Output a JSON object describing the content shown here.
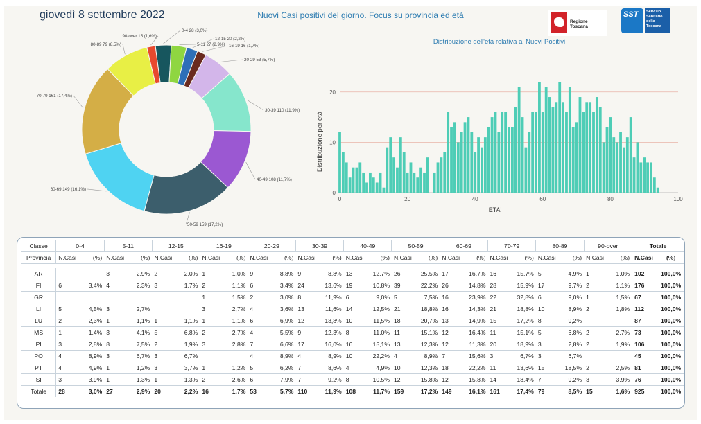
{
  "header": {
    "date": "giovedì 8 settembre 2022",
    "title": "Nuovi Casi positivi del giorno. Focus su provincia ed età",
    "logo_regione": "Regione Toscana",
    "logo_sst_short": "SST",
    "logo_sst_text": [
      "Servizio",
      "Sanitario",
      "della",
      "Toscana"
    ]
  },
  "chart_data": [
    {
      "type": "pie",
      "donut": true,
      "categories": [
        "0-4",
        "5-11",
        "12-15",
        "16-19",
        "20-29",
        "30-39",
        "40-49",
        "50-59",
        "60-69",
        "70-79",
        "80-89",
        "90-over"
      ],
      "values": [
        28,
        27,
        20,
        16,
        53,
        110,
        108,
        159,
        149,
        161,
        79,
        15
      ],
      "labels": [
        "0-4 28 (3,0%)",
        "5-11 27 (2,9%)",
        "12-15 20 (2,2%)",
        "16-19 16 (1,7%)",
        "20-29 53 (5,7%)",
        "30-39 110 (11,9%)",
        "40-49 108 (11,7%)",
        "50-59 159 (17,2%)",
        "60-69 149 (16,1%)",
        "70-79 161 (17,4%)",
        "80-89 79 (8,5%)",
        "90-over 15 (1,6%)"
      ],
      "colors": [
        "#17565e",
        "#8fd641",
        "#2e6fb8",
        "#6a2a1f",
        "#d3b6ea",
        "#86e6cc",
        "#9b58d2",
        "#3c5e6c",
        "#4fd3f2",
        "#d4ae46",
        "#e8ef45",
        "#e8492e"
      ]
    },
    {
      "type": "bar",
      "title": "Distribuzione dell'età relativa ai Nuovi Positivi",
      "xlabel": "ETA'",
      "ylabel": "Distribuzione per età",
      "xlim": [
        0,
        100
      ],
      "ylim": [
        0,
        23
      ],
      "xticks": [
        0,
        20,
        40,
        60,
        80,
        100
      ],
      "yticks": [
        0,
        10,
        20
      ],
      "color": "#4ecdb6",
      "x": [
        0,
        1,
        2,
        3,
        4,
        5,
        6,
        7,
        8,
        9,
        10,
        11,
        12,
        13,
        14,
        15,
        16,
        17,
        18,
        19,
        20,
        21,
        22,
        23,
        24,
        25,
        26,
        27,
        28,
        29,
        30,
        31,
        32,
        33,
        34,
        35,
        36,
        37,
        38,
        39,
        40,
        41,
        42,
        43,
        44,
        45,
        46,
        47,
        48,
        49,
        50,
        51,
        52,
        53,
        54,
        55,
        56,
        57,
        58,
        59,
        60,
        61,
        62,
        63,
        64,
        65,
        66,
        67,
        68,
        69,
        70,
        71,
        72,
        73,
        74,
        75,
        76,
        77,
        78,
        79,
        80,
        81,
        82,
        83,
        84,
        85,
        86,
        87,
        88,
        89,
        90,
        91,
        92,
        93,
        94,
        95,
        96,
        97,
        98,
        99,
        100
      ],
      "values": [
        12,
        8,
        6,
        3,
        5,
        5,
        6,
        4,
        2,
        4,
        3,
        2,
        4,
        1,
        9,
        11,
        7,
        5,
        11,
        8,
        4,
        6,
        4,
        3,
        5,
        4,
        7,
        0,
        4,
        6,
        7,
        8,
        16,
        13,
        14,
        10,
        12,
        14,
        15,
        12,
        8,
        11,
        9,
        11,
        13,
        15,
        16,
        12,
        16,
        16,
        13,
        13,
        17,
        21,
        15,
        9,
        12,
        16,
        16,
        22,
        16,
        21,
        19,
        17,
        18,
        22,
        18,
        16,
        21,
        13,
        14,
        19,
        16,
        18,
        18,
        16,
        19,
        17,
        10,
        13,
        15,
        11,
        10,
        12,
        9,
        11,
        15,
        7,
        10,
        6,
        7,
        6,
        6,
        3,
        1,
        0,
        0,
        0,
        0,
        0,
        0
      ]
    }
  ],
  "table": {
    "classe_label": "Classe",
    "provincia_label": "Provincia",
    "ncasi_label": "N.Casi",
    "pct_label": "(%)",
    "total_label": "Totale",
    "groups": [
      "0-4",
      "5-11",
      "12-15",
      "16-19",
      "20-29",
      "30-39",
      "40-49",
      "50-59",
      "60-69",
      "70-79",
      "80-89",
      "90-over"
    ],
    "rows": [
      {
        "prov": "AR",
        "cells": [
          [
            "",
            ""
          ],
          [
            "3",
            "2,9%"
          ],
          [
            "2",
            "2,0%"
          ],
          [
            "1",
            "1,0%"
          ],
          [
            "9",
            "8,8%"
          ],
          [
            "9",
            "8,8%"
          ],
          [
            "13",
            "12,7%"
          ],
          [
            "26",
            "25,5%"
          ],
          [
            "17",
            "16,7%"
          ],
          [
            "16",
            "15,7%"
          ],
          [
            "5",
            "4,9%"
          ],
          [
            "1",
            "1,0%"
          ]
        ],
        "tot": "102",
        "totp": "100,0%"
      },
      {
        "prov": "FI",
        "cells": [
          [
            "6",
            "3,4%"
          ],
          [
            "4",
            "2,3%"
          ],
          [
            "3",
            "1,7%"
          ],
          [
            "2",
            "1,1%"
          ],
          [
            "6",
            "3,4%"
          ],
          [
            "24",
            "13,6%"
          ],
          [
            "19",
            "10,8%"
          ],
          [
            "39",
            "22,2%"
          ],
          [
            "26",
            "14,8%"
          ],
          [
            "28",
            "15,9%"
          ],
          [
            "17",
            "9,7%"
          ],
          [
            "2",
            "1,1%"
          ]
        ],
        "tot": "176",
        "totp": "100,0%"
      },
      {
        "prov": "GR",
        "cells": [
          [
            "",
            ""
          ],
          [
            "",
            ""
          ],
          [
            "",
            ""
          ],
          [
            "1",
            "1,5%"
          ],
          [
            "2",
            "3,0%"
          ],
          [
            "8",
            "11,9%"
          ],
          [
            "6",
            "9,0%"
          ],
          [
            "5",
            "7,5%"
          ],
          [
            "16",
            "23,9%"
          ],
          [
            "22",
            "32,8%"
          ],
          [
            "6",
            "9,0%"
          ],
          [
            "1",
            "1,5%"
          ]
        ],
        "tot": "67",
        "totp": "100,0%"
      },
      {
        "prov": "LI",
        "cells": [
          [
            "5",
            "4,5%"
          ],
          [
            "3",
            "2,7%"
          ],
          [
            "",
            ""
          ],
          [
            "3",
            "2,7%"
          ],
          [
            "4",
            "3,6%"
          ],
          [
            "13",
            "11,6%"
          ],
          [
            "14",
            "12,5%"
          ],
          [
            "21",
            "18,8%"
          ],
          [
            "16",
            "14,3%"
          ],
          [
            "21",
            "18,8%"
          ],
          [
            "10",
            "8,9%"
          ],
          [
            "2",
            "1,8%"
          ]
        ],
        "tot": "112",
        "totp": "100,0%"
      },
      {
        "prov": "LU",
        "cells": [
          [
            "2",
            "2,3%"
          ],
          [
            "1",
            "1,1%"
          ],
          [
            "1",
            "1,1%"
          ],
          [
            "1",
            "1,1%"
          ],
          [
            "6",
            "6,9%"
          ],
          [
            "12",
            "13,8%"
          ],
          [
            "10",
            "11,5%"
          ],
          [
            "18",
            "20,7%"
          ],
          [
            "13",
            "14,9%"
          ],
          [
            "15",
            "17,2%"
          ],
          [
            "8",
            "9,2%"
          ],
          [
            "",
            ""
          ]
        ],
        "tot": "87",
        "totp": "100,0%"
      },
      {
        "prov": "MS",
        "cells": [
          [
            "1",
            "1,4%"
          ],
          [
            "3",
            "4,1%"
          ],
          [
            "5",
            "6,8%"
          ],
          [
            "2",
            "2,7%"
          ],
          [
            "4",
            "5,5%"
          ],
          [
            "9",
            "12,3%"
          ],
          [
            "8",
            "11,0%"
          ],
          [
            "11",
            "15,1%"
          ],
          [
            "12",
            "16,4%"
          ],
          [
            "11",
            "15,1%"
          ],
          [
            "5",
            "6,8%"
          ],
          [
            "2",
            "2,7%"
          ]
        ],
        "tot": "73",
        "totp": "100,0%"
      },
      {
        "prov": "PI",
        "cells": [
          [
            "3",
            "2,8%"
          ],
          [
            "8",
            "7,5%"
          ],
          [
            "2",
            "1,9%"
          ],
          [
            "3",
            "2,8%"
          ],
          [
            "7",
            "6,6%"
          ],
          [
            "17",
            "16,0%"
          ],
          [
            "16",
            "15,1%"
          ],
          [
            "13",
            "12,3%"
          ],
          [
            "12",
            "11,3%"
          ],
          [
            "20",
            "18,9%"
          ],
          [
            "3",
            "2,8%"
          ],
          [
            "2",
            "1,9%"
          ]
        ],
        "tot": "106",
        "totp": "100,0%"
      },
      {
        "prov": "PO",
        "cells": [
          [
            "4",
            "8,9%"
          ],
          [
            "3",
            "6,7%"
          ],
          [
            "3",
            "6,7%"
          ],
          [
            "",
            ""
          ],
          [
            "4",
            "8,9%"
          ],
          [
            "4",
            "8,9%"
          ],
          [
            "10",
            "22,2%"
          ],
          [
            "4",
            "8,9%"
          ],
          [
            "7",
            "15,6%"
          ],
          [
            "3",
            "6,7%"
          ],
          [
            "3",
            "6,7%"
          ],
          [
            "",
            ""
          ]
        ],
        "tot": "45",
        "totp": "100,0%"
      },
      {
        "prov": "PT",
        "cells": [
          [
            "4",
            "4,9%"
          ],
          [
            "1",
            "1,2%"
          ],
          [
            "3",
            "3,7%"
          ],
          [
            "1",
            "1,2%"
          ],
          [
            "5",
            "6,2%"
          ],
          [
            "7",
            "8,6%"
          ],
          [
            "4",
            "4,9%"
          ],
          [
            "10",
            "12,3%"
          ],
          [
            "18",
            "22,2%"
          ],
          [
            "11",
            "13,6%"
          ],
          [
            "15",
            "18,5%"
          ],
          [
            "2",
            "2,5%"
          ]
        ],
        "tot": "81",
        "totp": "100,0%"
      },
      {
        "prov": "SI",
        "cells": [
          [
            "3",
            "3,9%"
          ],
          [
            "1",
            "1,3%"
          ],
          [
            "1",
            "1,3%"
          ],
          [
            "2",
            "2,6%"
          ],
          [
            "6",
            "7,9%"
          ],
          [
            "7",
            "9,2%"
          ],
          [
            "8",
            "10,5%"
          ],
          [
            "12",
            "15,8%"
          ],
          [
            "12",
            "15,8%"
          ],
          [
            "14",
            "18,4%"
          ],
          [
            "7",
            "9,2%"
          ],
          [
            "3",
            "3,9%"
          ]
        ],
        "tot": "76",
        "totp": "100,0%"
      }
    ],
    "total_row": {
      "prov": "Totale",
      "cells": [
        [
          "28",
          "3,0%"
        ],
        [
          "27",
          "2,9%"
        ],
        [
          "20",
          "2,2%"
        ],
        [
          "16",
          "1,7%"
        ],
        [
          "53",
          "5,7%"
        ],
        [
          "110",
          "11,9%"
        ],
        [
          "108",
          "11,7%"
        ],
        [
          "159",
          "17,2%"
        ],
        [
          "149",
          "16,1%"
        ],
        [
          "161",
          "17,4%"
        ],
        [
          "79",
          "8,5%"
        ],
        [
          "15",
          "1,6%"
        ]
      ],
      "tot": "925",
      "totp": "100,0%"
    }
  }
}
